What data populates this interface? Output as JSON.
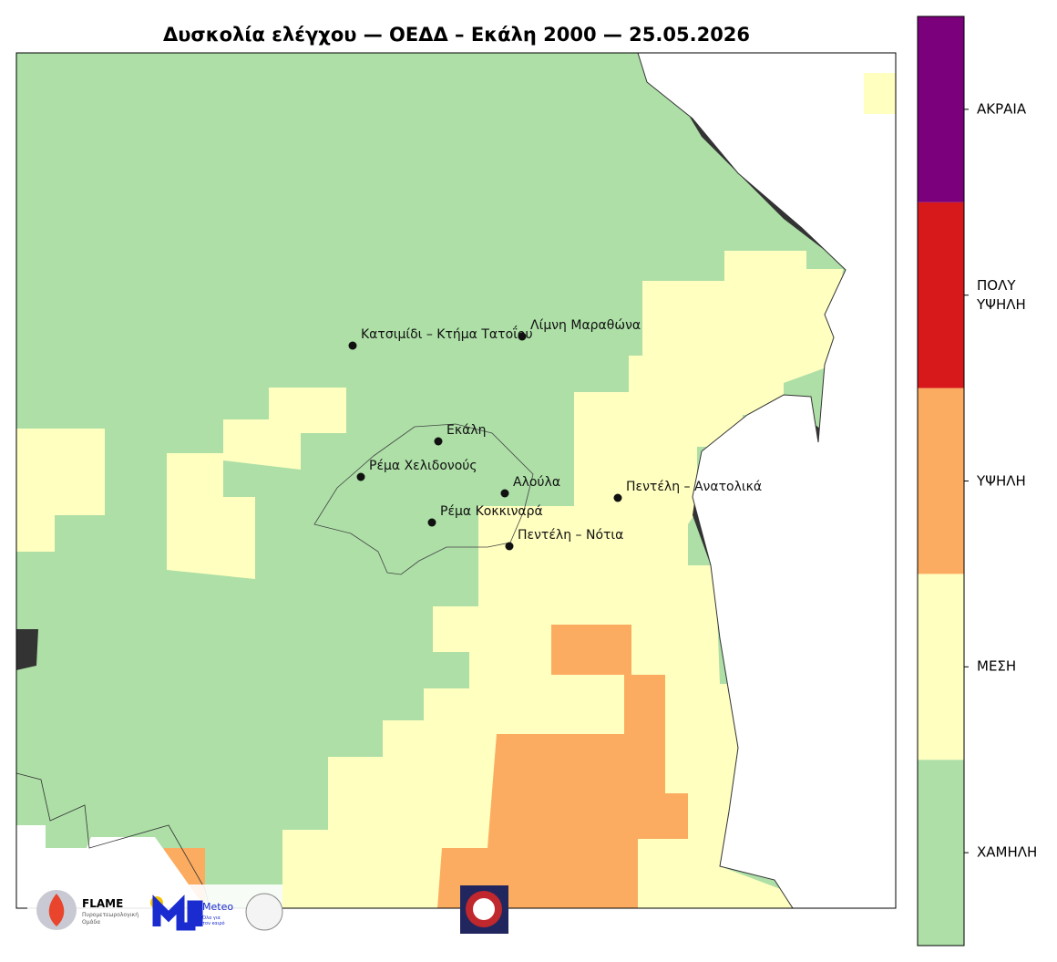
{
  "title": "Δυσκολία ελέγχου — ΟΕΔΔ – Εκάλη 2000 — 25.05.2026",
  "places": [
    "Κατσιμίδι – Κτήμα Τατοΐου",
    "Λίμνη Μαραθώνα",
    "Εκάλη",
    "Ρέμα Χελιδονούς",
    "Αλούλα",
    "Πεντέλη – Ανατολικά",
    "Ρέμα Κοκκιναρά",
    "Πεντέλη – Νότια"
  ],
  "colorbar": {
    "levels": [
      {
        "label": "ΧΑΜΗΛΗ",
        "color": "#addfa7"
      },
      {
        "label": "ΜΕΣΗ",
        "color": "#ffffc0"
      },
      {
        "label": "ΥΨΗΛΗ",
        "color": "#fcac60"
      },
      {
        "label": "ΠΟΛΥ\nΥΨΗΛΗ",
        "color": "#d7191c"
      },
      {
        "label": "ΑΚΡΑΙΑ",
        "color": "#7b007b"
      }
    ]
  },
  "logos": {
    "flame": "FLAME",
    "flame_sub": "Πυρομετεωρολογική\nΟμάδα",
    "meteo": "Meteo",
    "meteo_sub": "Όλα για\nτον καιρό"
  }
}
